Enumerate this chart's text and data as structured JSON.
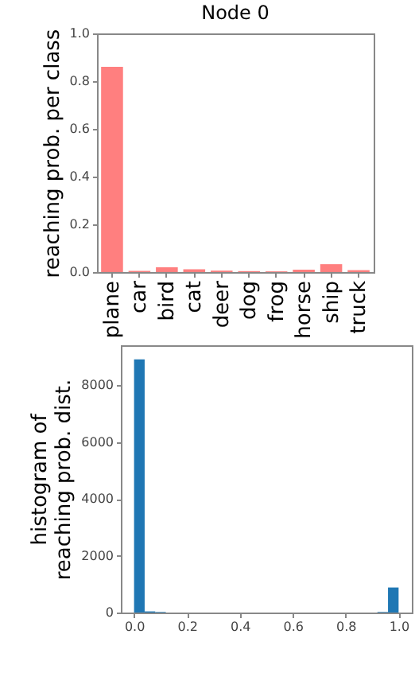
{
  "chart_data": [
    {
      "type": "bar",
      "title": "Node 0",
      "ylabel": "reaching prob. per class",
      "categories": [
        "plane",
        "car",
        "bird",
        "cat",
        "deer",
        "dog",
        "frog",
        "horse",
        "ship",
        "truck"
      ],
      "values": [
        0.86,
        0.005,
        0.02,
        0.012,
        0.006,
        0.004,
        0.003,
        0.01,
        0.033,
        0.008
      ],
      "color": "#ff7f7f",
      "ylim": [
        0,
        1
      ],
      "yticks": [
        {
          "value": 0,
          "label": "0.0"
        },
        {
          "value": 0.2,
          "label": "0.2"
        },
        {
          "value": 0.4,
          "label": "0.4"
        },
        {
          "value": 0.6,
          "label": "0.6"
        },
        {
          "value": 0.8,
          "label": "0.8"
        },
        {
          "value": 1,
          "label": "1.0"
        }
      ],
      "grid": false
    },
    {
      "type": "histogram",
      "ylabel": "histogram of\nreaching prob. dist.",
      "bins": [
        0,
        0.04,
        0.08,
        0.12,
        0.16,
        0.2,
        0.24,
        0.28,
        0.32,
        0.36,
        0.4,
        0.44,
        0.48,
        0.52,
        0.56,
        0.6,
        0.64,
        0.68,
        0.72,
        0.76,
        0.8,
        0.84,
        0.88,
        0.92,
        0.96,
        1
      ],
      "values": [
        8900,
        40,
        20,
        0,
        0,
        0,
        0,
        0,
        0,
        0,
        0,
        0,
        0,
        0,
        0,
        0,
        0,
        0,
        0,
        0,
        0,
        0,
        0,
        20,
        880
      ],
      "color": "#1f77b4",
      "xlim": [
        -0.05,
        1.05
      ],
      "ylim": [
        0,
        9400
      ],
      "xticks": [
        {
          "value": 0,
          "label": "0.0"
        },
        {
          "value": 0.2,
          "label": "0.2"
        },
        {
          "value": 0.4,
          "label": "0.4"
        },
        {
          "value": 0.6,
          "label": "0.6"
        },
        {
          "value": 0.8,
          "label": "0.8"
        },
        {
          "value": 1,
          "label": "1.0"
        }
      ],
      "yticks": [
        0,
        2000,
        4000,
        6000,
        8000
      ],
      "grid": false
    }
  ]
}
